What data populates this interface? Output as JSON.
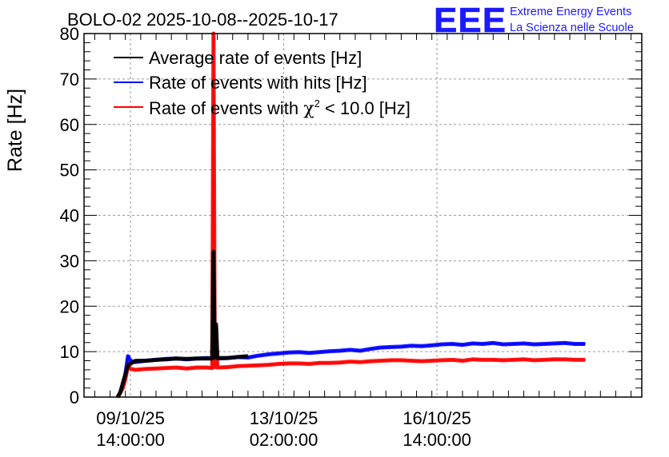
{
  "chart_data": {
    "type": "line",
    "title": "BOLO-02 2025-10-08--2025-10-17",
    "ylabel": "Rate [Hz]",
    "xlabel": "",
    "ylim": [
      0,
      80
    ],
    "yticks": [
      "0",
      "10",
      "20",
      "30",
      "40",
      "50",
      "60",
      "70",
      "80"
    ],
    "x_unit": "hours since 08/10/25 00:00",
    "xlim": [
      19.8,
      238.2
    ],
    "xticks": [
      {
        "x": 38,
        "date": "09/10/25",
        "time": "14:00:00"
      },
      {
        "x": 98,
        "date": "13/10/25",
        "time": "02:00:00"
      },
      {
        "x": 158,
        "date": "16/10/25",
        "time": "14:00:00"
      }
    ],
    "grid": true,
    "legend_position": "top-left",
    "series": [
      {
        "name": "Average rate of events [Hz]",
        "color": "#000000",
        "x": [
          33,
          34,
          35,
          37,
          40,
          44,
          48,
          52,
          56,
          60,
          64,
          68,
          70,
          70.5,
          71,
          71.5,
          72,
          76,
          80,
          84
        ],
        "y": [
          0,
          1,
          3,
          7,
          8,
          8,
          8.2,
          8.3,
          8.5,
          8.4,
          8.5,
          8.5,
          8.5,
          32,
          8.7,
          16,
          8.6,
          8.6,
          8.8,
          9
        ]
      },
      {
        "name": "Rate of events with hits [Hz]",
        "color": "#0000ff",
        "x": [
          33,
          34,
          35,
          36,
          37,
          38,
          40,
          44,
          48,
          52,
          56,
          60,
          64,
          68,
          70,
          70.5,
          71,
          71.5,
          72,
          76,
          80,
          84,
          88,
          92,
          96,
          100,
          104,
          108,
          112,
          116,
          120,
          124,
          128,
          132,
          136,
          140,
          144,
          148,
          152,
          156,
          160,
          164,
          168,
          172,
          176,
          180,
          184,
          188,
          192,
          196,
          200,
          204,
          208,
          212,
          216
        ],
        "y": [
          0,
          1,
          3,
          5,
          9,
          8,
          7.7,
          8,
          8.2,
          8.4,
          8.5,
          8.3,
          8.5,
          8.6,
          8.5,
          31,
          8.7,
          15,
          8.5,
          8.6,
          8.8,
          8.7,
          9.1,
          9.4,
          9.6,
          9.8,
          9.9,
          9.7,
          9.9,
          10.1,
          10.2,
          10.4,
          10.2,
          10.6,
          10.9,
          11,
          11.1,
          11.3,
          11.2,
          11.4,
          11.6,
          11.7,
          11.5,
          11.8,
          11.7,
          11.9,
          11.6,
          11.7,
          11.8,
          11.6,
          11.7,
          11.8,
          11.9,
          11.7,
          11.7
        ]
      },
      {
        "name": "Rate of events with χ² < 10.0 [Hz]",
        "color": "#ff0000",
        "x": [
          33,
          34,
          35,
          36,
          37,
          38,
          40,
          44,
          48,
          52,
          56,
          60,
          64,
          68,
          70,
          70.5,
          71,
          71.5,
          72,
          76,
          80,
          84,
          88,
          92,
          96,
          100,
          104,
          108,
          112,
          116,
          120,
          124,
          128,
          132,
          136,
          140,
          144,
          148,
          152,
          156,
          160,
          164,
          168,
          172,
          176,
          180,
          184,
          188,
          192,
          196,
          200,
          204,
          208,
          212,
          216
        ],
        "y": [
          0,
          1,
          2,
          4,
          7,
          6.2,
          6,
          6.2,
          6.3,
          6.4,
          6.5,
          6.3,
          6.5,
          6.5,
          6.4,
          80,
          6.6,
          14,
          6.5,
          6.6,
          6.8,
          6.9,
          7,
          7.1,
          7.3,
          7.4,
          7.4,
          7.3,
          7.5,
          7.5,
          7.6,
          7.8,
          7.7,
          7.9,
          8.0,
          8.1,
          8.1,
          8.0,
          7.9,
          8.0,
          8.1,
          8.2,
          8.0,
          8.3,
          8.2,
          8.2,
          8.1,
          8.2,
          8.3,
          8.1,
          8.2,
          8.3,
          8.3,
          8.2,
          8.2
        ]
      }
    ]
  },
  "legend": [
    {
      "label": "Average rate of events [Hz]",
      "color": "#000000"
    },
    {
      "label": "Rate of events with hits [Hz]",
      "color": "#0000ff"
    },
    {
      "label_pre": "Rate of events with ",
      "label_chi": "χ",
      "label_sup": "2",
      "label_post": " < 10.0 [Hz]",
      "color": "#ff0000"
    }
  ],
  "logo": {
    "mark": "EEE",
    "line1": "Extreme Energy Events",
    "line2": "La Scienza nelle Scuole",
    "color": "#1a1aff"
  }
}
